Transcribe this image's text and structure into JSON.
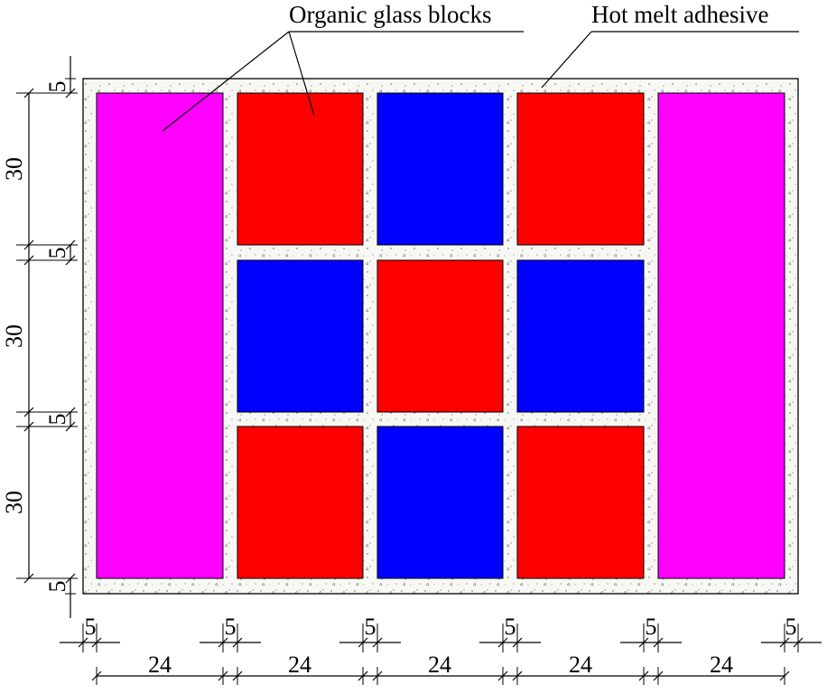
{
  "labels": {
    "organic_glass": "Organic glass blocks",
    "hot_melt": "Hot melt adhesive"
  },
  "colors": {
    "adhesive_fill": "#f7f7f4",
    "magenta_block": "#ff00ff",
    "red_block": "#ff0000",
    "blue_block": "#0000ff",
    "line": "#000000"
  },
  "layout_grid": {
    "left_column": "magenta",
    "right_column": "magenta",
    "middle_rows": [
      [
        "red",
        "blue",
        "red"
      ],
      [
        "blue",
        "red",
        "blue"
      ],
      [
        "red",
        "blue",
        "red"
      ]
    ]
  },
  "dimensions": {
    "vertical": [
      "5",
      "30",
      "5",
      "30",
      "5",
      "30",
      "5"
    ],
    "horizontal_gaps": [
      "5",
      "5",
      "5",
      "5",
      "5",
      "5"
    ],
    "horizontal_widths": [
      "24",
      "24",
      "24",
      "24",
      "24"
    ]
  }
}
